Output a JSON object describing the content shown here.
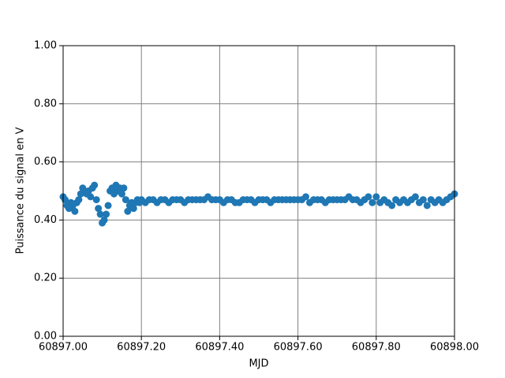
{
  "chart_data": {
    "type": "scatter",
    "xlabel": "MJD",
    "ylabel": "Puissance du signal en V",
    "color": "#1f77b4",
    "grid": true,
    "xlim": [
      60897.0,
      60898.0
    ],
    "xticks": [
      {
        "value": 60897.0,
        "label": "60897.00"
      },
      {
        "value": 60897.2,
        "label": "60897.20"
      },
      {
        "value": 60897.4,
        "label": "60897.40"
      },
      {
        "value": 60897.6,
        "label": "60897.60"
      },
      {
        "value": 60897.8,
        "label": "60897.80"
      },
      {
        "value": 60898.0,
        "label": "60898.00"
      }
    ],
    "ylim": [
      0,
      1
    ],
    "yticks": [
      {
        "value": 0,
        "label": "0.00"
      },
      {
        "value": 0.2,
        "label": "0.20"
      },
      {
        "value": 0.4,
        "label": "0.40"
      },
      {
        "value": 0.6,
        "label": "0.60"
      },
      {
        "value": 0.8,
        "label": "0.80"
      },
      {
        "value": 1,
        "label": "1.00"
      }
    ],
    "x": [
      60897.0,
      60897.005,
      60897.01,
      60897.015,
      60897.02,
      60897.025,
      60897.03,
      60897.035,
      60897.04,
      60897.045,
      60897.05,
      60897.055,
      60897.06,
      60897.065,
      60897.07,
      60897.075,
      60897.08,
      60897.085,
      60897.09,
      60897.095,
      60897.1,
      60897.105,
      60897.11,
      60897.115,
      60897.12,
      60897.125,
      60897.13,
      60897.135,
      60897.14,
      60897.145,
      60897.15,
      60897.155,
      60897.16,
      60897.165,
      60897.17,
      60897.175,
      60897.18,
      60897.185,
      60897.19,
      60897.195,
      60897.2,
      60897.21,
      60897.22,
      60897.23,
      60897.24,
      60897.25,
      60897.26,
      60897.27,
      60897.28,
      60897.29,
      60897.3,
      60897.31,
      60897.32,
      60897.33,
      60897.34,
      60897.35,
      60897.36,
      60897.37,
      60897.38,
      60897.39,
      60897.4,
      60897.41,
      60897.42,
      60897.43,
      60897.44,
      60897.45,
      60897.46,
      60897.47,
      60897.48,
      60897.49,
      60897.5,
      60897.51,
      60897.52,
      60897.53,
      60897.54,
      60897.55,
      60897.56,
      60897.57,
      60897.58,
      60897.59,
      60897.6,
      60897.61,
      60897.62,
      60897.63,
      60897.64,
      60897.65,
      60897.66,
      60897.67,
      60897.68,
      60897.69,
      60897.7,
      60897.71,
      60897.72,
      60897.73,
      60897.74,
      60897.75,
      60897.76,
      60897.77,
      60897.78,
      60897.79,
      60897.8,
      60897.81,
      60897.82,
      60897.83,
      60897.84,
      60897.85,
      60897.86,
      60897.87,
      60897.88,
      60897.89,
      60897.9,
      60897.91,
      60897.92,
      60897.93,
      60897.94,
      60897.95,
      60897.96,
      60897.97,
      60897.98,
      60897.99,
      60898.0
    ],
    "values": [
      0.48,
      0.47,
      0.45,
      0.44,
      0.46,
      0.45,
      0.43,
      0.46,
      0.47,
      0.49,
      0.51,
      0.5,
      0.49,
      0.5,
      0.48,
      0.51,
      0.52,
      0.47,
      0.44,
      0.42,
      0.39,
      0.4,
      0.42,
      0.45,
      0.5,
      0.51,
      0.49,
      0.52,
      0.5,
      0.51,
      0.49,
      0.51,
      0.47,
      0.43,
      0.45,
      0.46,
      0.44,
      0.46,
      0.47,
      0.46,
      0.47,
      0.46,
      0.47,
      0.47,
      0.46,
      0.47,
      0.47,
      0.46,
      0.47,
      0.47,
      0.47,
      0.46,
      0.47,
      0.47,
      0.47,
      0.47,
      0.47,
      0.48,
      0.47,
      0.47,
      0.47,
      0.46,
      0.47,
      0.47,
      0.46,
      0.46,
      0.47,
      0.47,
      0.47,
      0.46,
      0.47,
      0.47,
      0.47,
      0.46,
      0.47,
      0.47,
      0.47,
      0.47,
      0.47,
      0.47,
      0.47,
      0.47,
      0.48,
      0.46,
      0.47,
      0.47,
      0.47,
      0.46,
      0.47,
      0.47,
      0.47,
      0.47,
      0.47,
      0.48,
      0.47,
      0.47,
      0.46,
      0.47,
      0.48,
      0.46,
      0.48,
      0.46,
      0.47,
      0.46,
      0.45,
      0.47,
      0.46,
      0.47,
      0.46,
      0.47,
      0.48,
      0.46,
      0.47,
      0.45,
      0.47,
      0.46,
      0.47,
      0.46,
      0.47,
      0.48,
      0.49
    ]
  }
}
